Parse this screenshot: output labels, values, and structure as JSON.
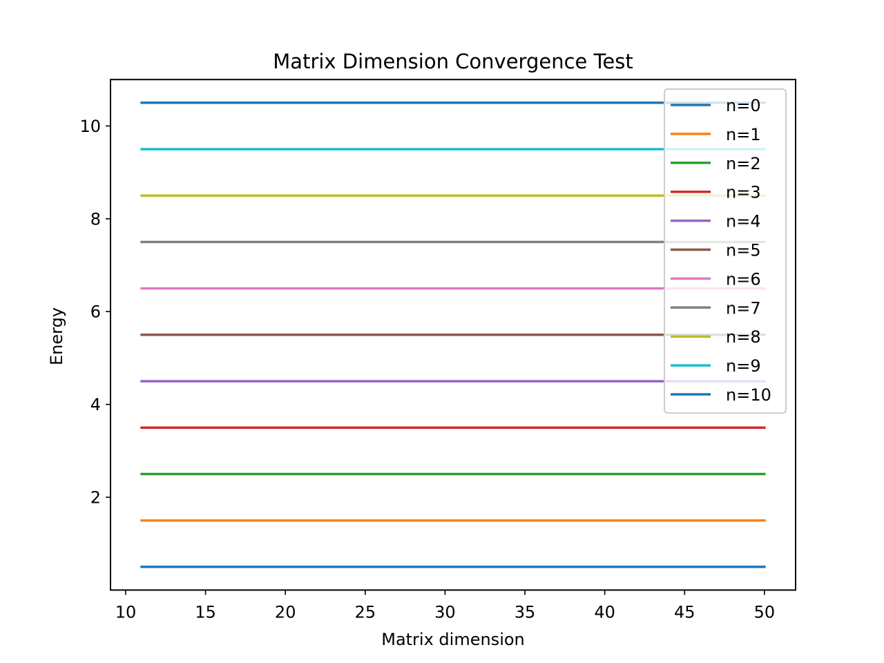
{
  "chart_data": {
    "type": "line",
    "title": "Matrix Dimension Convergence Test",
    "xlabel": "Matrix dimension",
    "ylabel": "Energy",
    "xlim": [
      9.05,
      51.95
    ],
    "ylim": [
      -0.0,
      11.0
    ],
    "xticks": [
      10,
      15,
      20,
      25,
      30,
      35,
      40,
      45,
      50
    ],
    "yticks": [
      2,
      4,
      6,
      8,
      10
    ],
    "grid": false,
    "legend_position": "upper right",
    "x": [
      11,
      12,
      13,
      14,
      15,
      16,
      17,
      18,
      19,
      20,
      21,
      22,
      23,
      24,
      25,
      26,
      27,
      28,
      29,
      30,
      31,
      32,
      33,
      34,
      35,
      36,
      37,
      38,
      39,
      40,
      41,
      42,
      43,
      44,
      45,
      46,
      47,
      48,
      49,
      50
    ],
    "series": [
      {
        "name": "n=0",
        "color": "#1f77b4",
        "value": 0.5
      },
      {
        "name": "n=1",
        "color": "#ff7f0e",
        "value": 1.5
      },
      {
        "name": "n=2",
        "color": "#2ca02c",
        "value": 2.5
      },
      {
        "name": "n=3",
        "color": "#d62728",
        "value": 3.5
      },
      {
        "name": "n=4",
        "color": "#9467bd",
        "value": 4.5
      },
      {
        "name": "n=5",
        "color": "#8c564b",
        "value": 5.5
      },
      {
        "name": "n=6",
        "color": "#e377c2",
        "value": 6.5
      },
      {
        "name": "n=7",
        "color": "#7f7f7f",
        "value": 7.5
      },
      {
        "name": "n=8",
        "color": "#bcbd22",
        "value": 8.5
      },
      {
        "name": "n=9",
        "color": "#17becf",
        "value": 9.5
      },
      {
        "name": "n=10",
        "color": "#1f77b4",
        "value": 10.5
      }
    ]
  }
}
